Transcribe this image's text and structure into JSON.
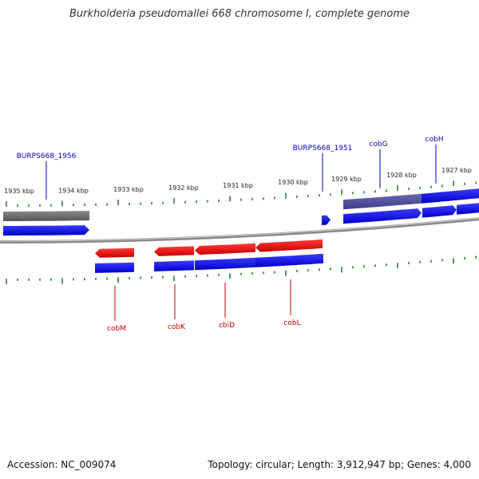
{
  "title": "Burkholderia pseudomallei 668 chromosome I, complete genome",
  "colors": {
    "forward_gene": "#0000e6",
    "reverse_gene": "#e60000",
    "pseudo_gray": "#666666",
    "overlap_purple": "#4a4a99",
    "backbone": "#8a8a8a",
    "tick": "#1a7a1a",
    "label_forward": "#0000b0",
    "label_reverse": "#c00000",
    "text": "#222222"
  },
  "ticks": {
    "labels": [
      "1935 kbp",
      "1934 kbp",
      "1933 kbp",
      "1932 kbp",
      "1931 kbp",
      "1930 kbp",
      "1929 kbp",
      "1928 kbp",
      "1927 kbp"
    ]
  },
  "genes": {
    "forward": [
      {
        "label": "BURPS668_1956"
      },
      {
        "label": "BURPS668_1951"
      },
      {
        "label": "cobG"
      },
      {
        "label": "cobH"
      }
    ],
    "reverse": [
      {
        "label": "cobM"
      },
      {
        "label": "cobK"
      },
      {
        "label": "cbiD"
      },
      {
        "label": "cobL"
      }
    ]
  },
  "footer": {
    "accession_label": "Accession:",
    "accession": "NC_009074",
    "topology_label": "Topology:",
    "topology": "circular",
    "length_label": "Length:",
    "length": "3,912,947 bp",
    "genes_label": "Genes:",
    "genes": "4,000"
  }
}
